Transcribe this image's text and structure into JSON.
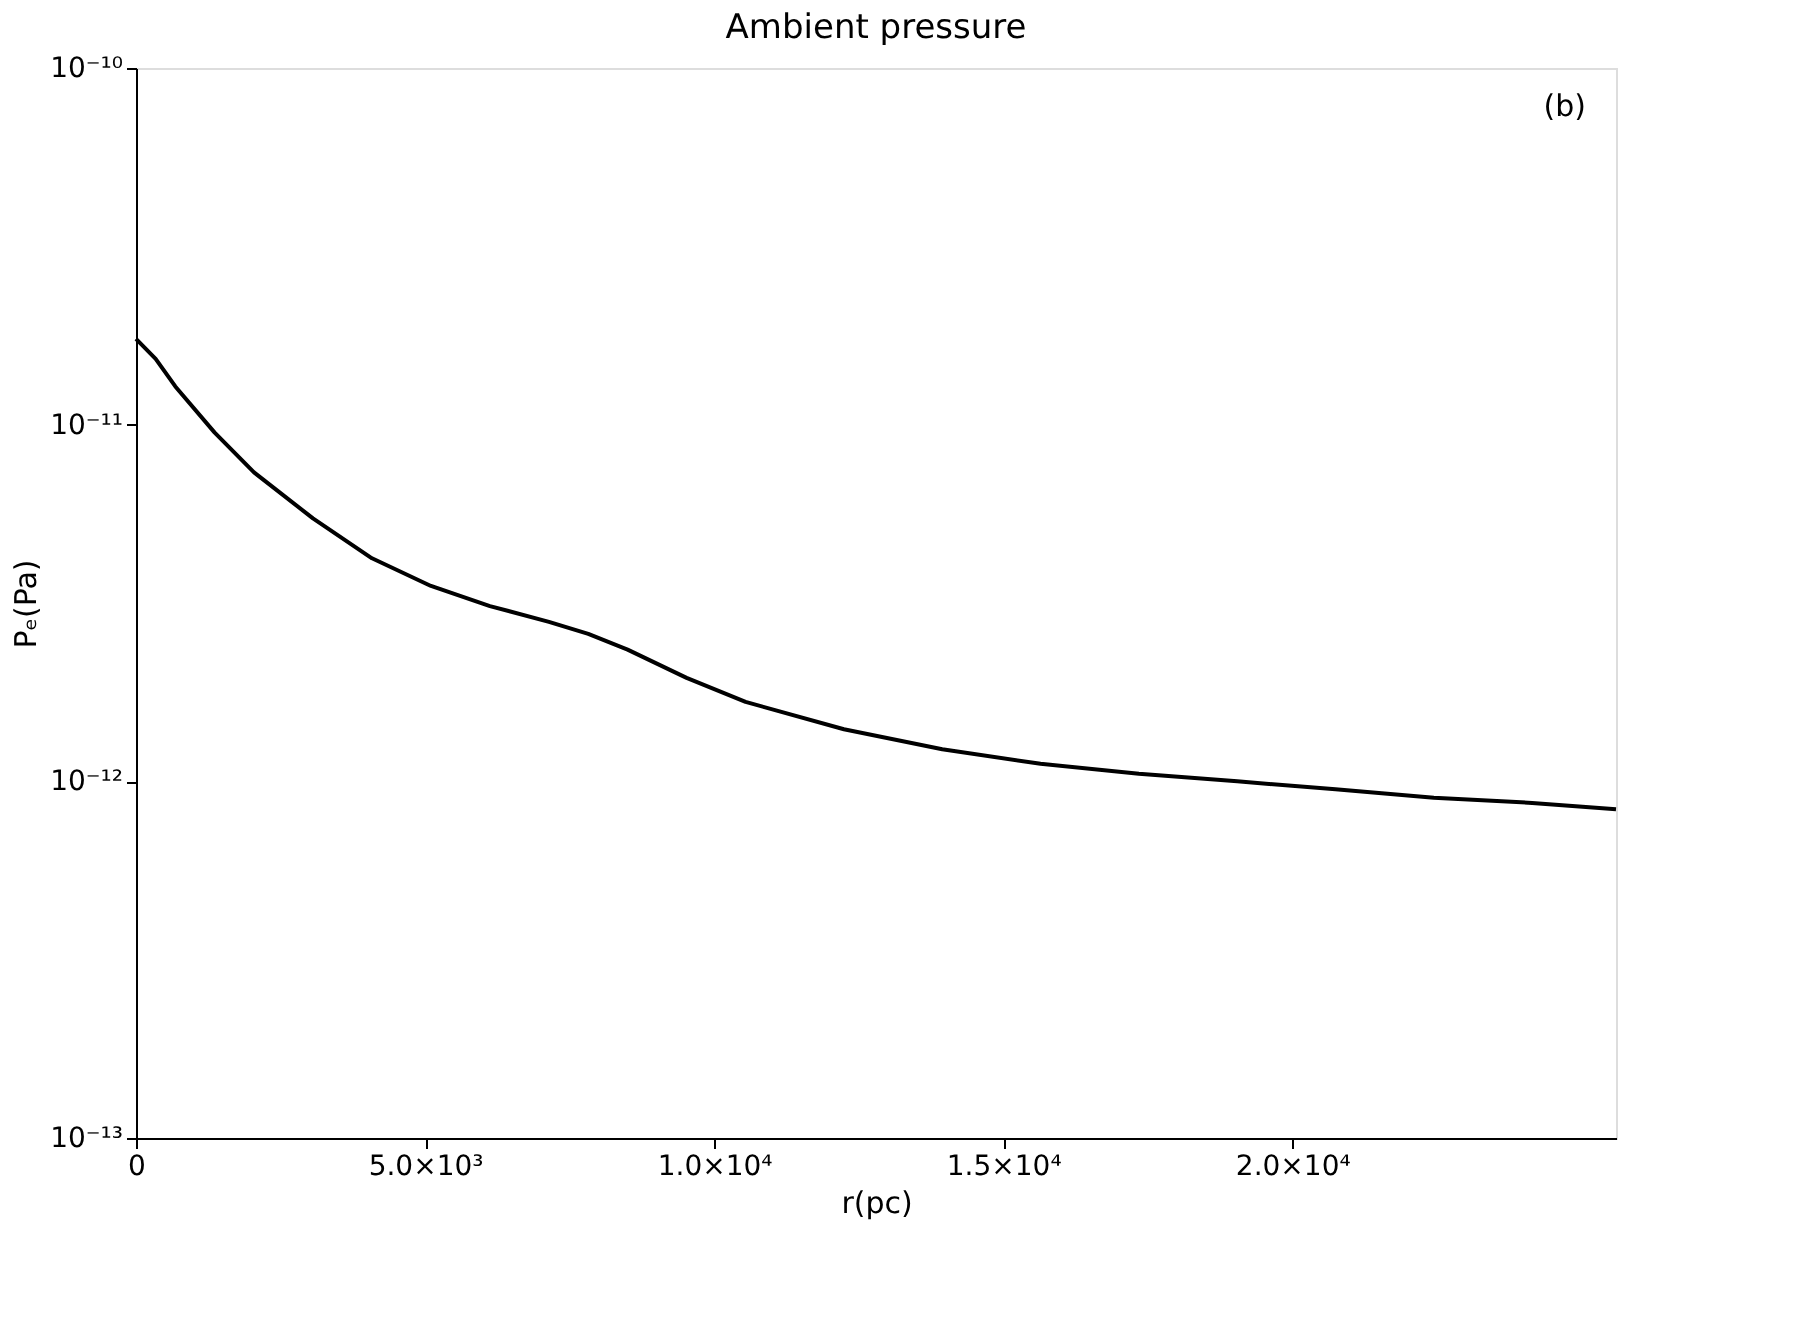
{
  "chart_data": {
    "type": "line",
    "title": "Ambient pressure",
    "xlabel": "r(pc)",
    "ylabel": "Pₑ(Pa)",
    "annotations": [
      "(b)"
    ],
    "x": [
      0,
      340,
      680,
      1361,
      2041,
      3061,
      4082,
      5102,
      6122,
      7143,
      7823,
      8503,
      9524,
      10544,
      12245,
      13946,
      15646,
      17347,
      19048,
      20748,
      22449,
      24150,
      25600
    ],
    "series": [
      {
        "color": "#000000",
        "values": [
          1.74e-11,
          1.53e-11,
          1.28e-11,
          9.5e-12,
          7.35e-12,
          5.46e-12,
          4.22e-12,
          3.53e-12,
          3.1e-12,
          2.8e-12,
          2.59e-12,
          2.34e-12,
          1.95e-12,
          1.67e-12,
          1.4e-12,
          1.23e-12,
          1.12e-12,
          1.05e-12,
          1e-12,
          9.5e-13,
          9e-13,
          8.7e-13,
          8.35e-13
        ]
      }
    ],
    "xlim": [
      0,
      25600
    ],
    "xticks": [
      0,
      {
        "value": 5000,
        "label": "5.0×10³"
      },
      {
        "value": 10000,
        "label": "1.0×10⁴"
      },
      {
        "value": 15000,
        "label": "1.5×10⁴"
      },
      {
        "value": 20000,
        "label": "2.0×10⁴"
      }
    ],
    "ylim": [
      1e-13,
      1e-10
    ],
    "yticks": [
      {
        "value": 1e-13,
        "label": "10⁻¹³"
      },
      {
        "value": 1e-12,
        "label": "10⁻¹²"
      },
      {
        "value": 1e-11,
        "label": "10⁻¹¹"
      },
      {
        "value": 1e-10,
        "label": "10⁻¹⁰"
      }
    ],
    "log": "y",
    "grid": false,
    "legend": false,
    "marker": "none",
    "line_style": "solid"
  }
}
